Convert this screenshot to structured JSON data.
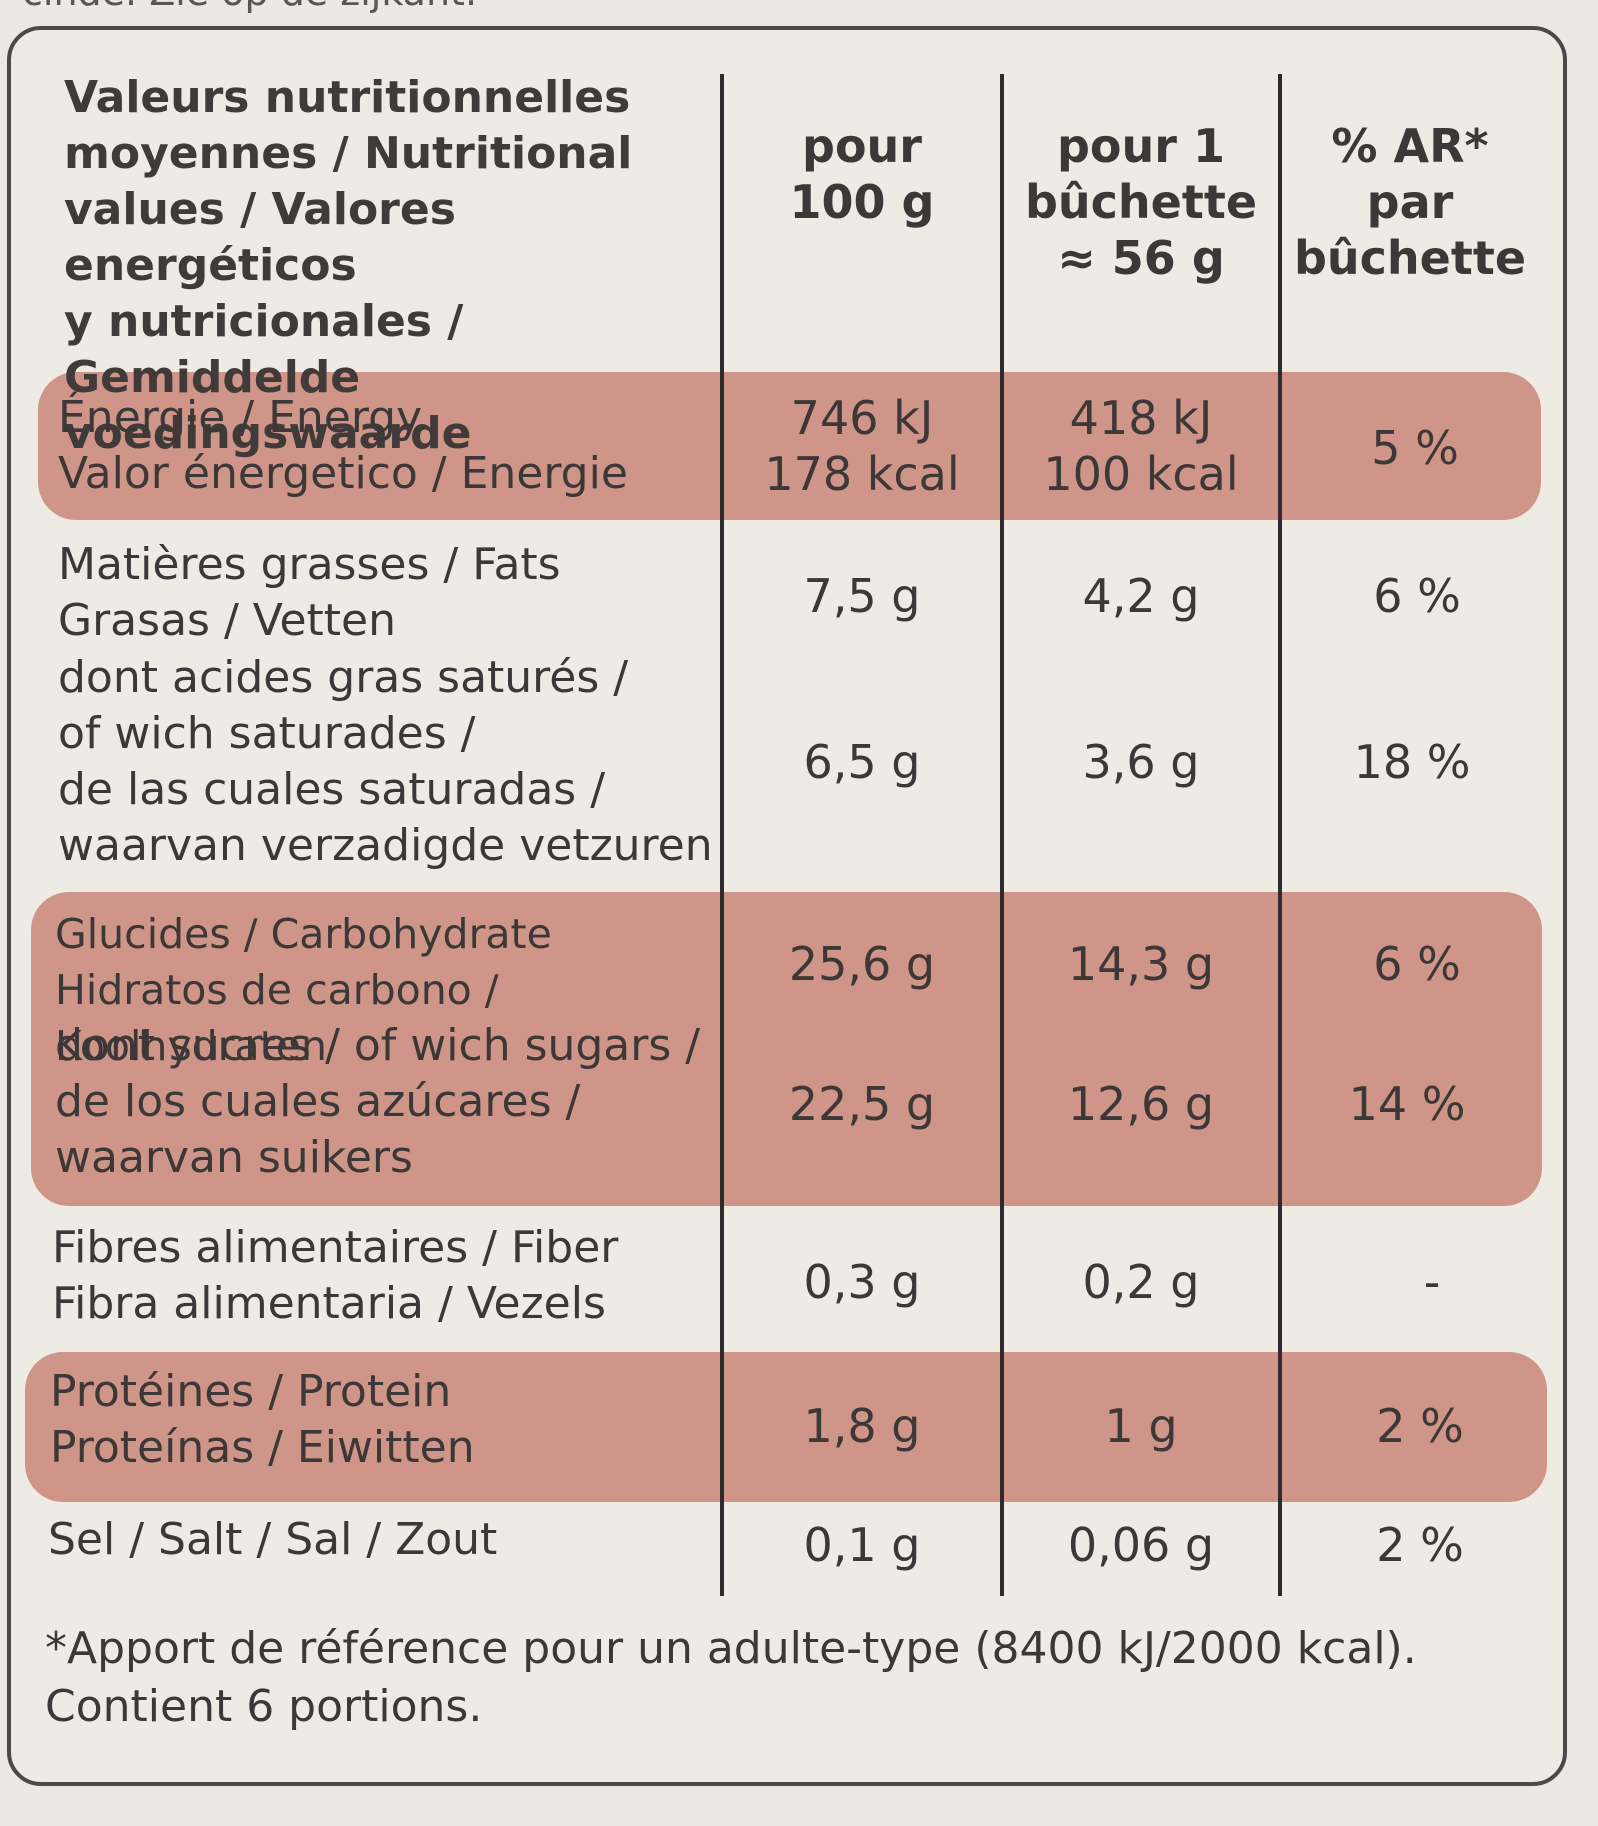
{
  "top_text": "cinde. Zie op de zijkant.",
  "header": {
    "label": "Valeurs nutritionnelles\nmoyennes / Nutritional\nvalues / Valores energéticos\ny nutricionales / Gemiddelde\nvoedingswaarde",
    "col1": "pour\n100 g",
    "col2": "pour 1\nbûchette\n≈ 56 g",
    "col3": "% AR*\npar\nbûchette"
  },
  "rows": [
    {
      "label": "Énergie / Energy\nValor énergetico / Energie",
      "per100": "746 kJ\n178 kcal",
      "perPortion": "418 kJ\n100 kcal",
      "ar": "5 %"
    },
    {
      "label": "Matières grasses / Fats\nGrasas / Vetten",
      "per100": "7,5 g",
      "perPortion": "4,2 g",
      "ar": "6 %"
    },
    {
      "label": "dont acides gras saturés /\nof wich saturades /\nde las cuales saturadas /\nwaarvan verzadigde vetzuren",
      "per100": "6,5 g",
      "perPortion": "3,6 g",
      "ar": "18 %"
    },
    {
      "label": "Glucides / Carbohydrate\nHidratos de carbono / Koolhydraten",
      "per100": "25,6 g",
      "perPortion": "14,3 g",
      "ar": "6 %"
    },
    {
      "label": "dont sucres / of wich sugars /\nde los cuales azúcares /\nwaarvan suikers",
      "per100": "22,5 g",
      "perPortion": "12,6 g",
      "ar": "14 %"
    },
    {
      "label": "Fibres alimentaires / Fiber\nFibra alimentaria / Vezels",
      "per100": "0,3 g",
      "perPortion": "0,2 g",
      "ar": "-"
    },
    {
      "label": "Protéines / Protein\nProteínas / Eiwitten",
      "per100": "1,8 g",
      "perPortion": "1 g",
      "ar": "2 %"
    },
    {
      "label": "Sel / Salt / Sal / Zout",
      "per100": "0,1 g",
      "perPortion": "0,06 g",
      "ar": "2 %"
    }
  ],
  "footnote": "*Apport de référence pour un adulte-type (8400 kJ/2000 kcal).\nContient 6 portions.",
  "colors": {
    "band": "#cf9588",
    "background": "#eeebe5",
    "text": "#3c3837"
  }
}
